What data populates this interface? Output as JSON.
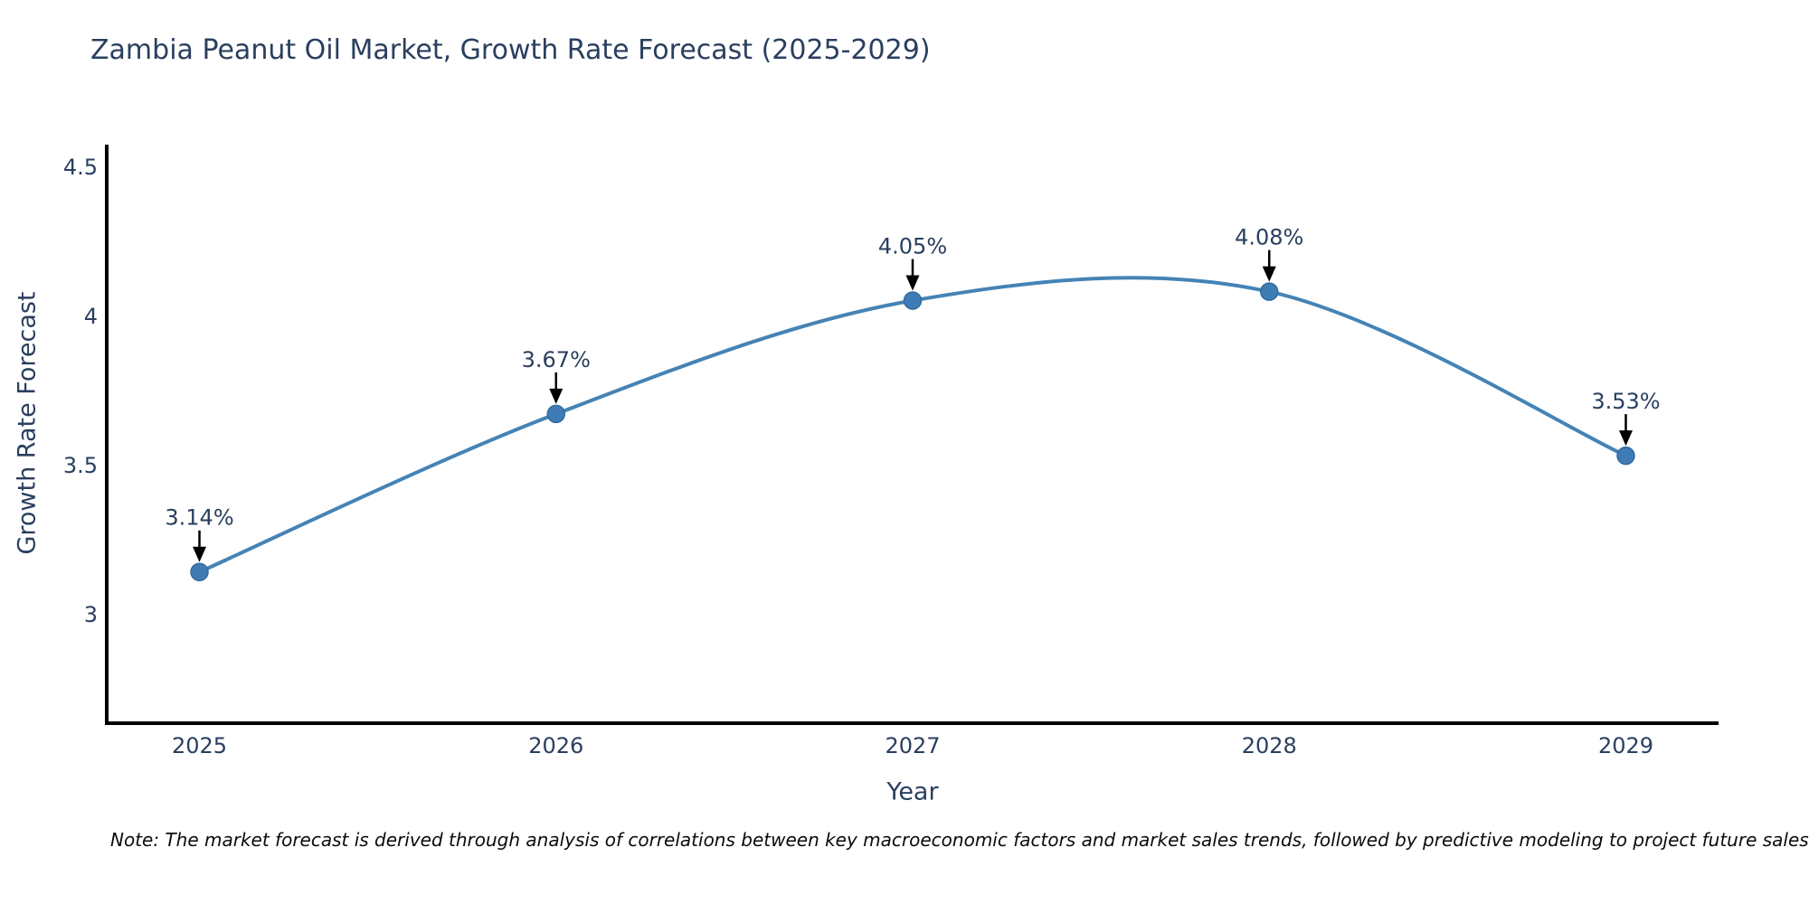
{
  "chart_data": {
    "type": "line",
    "line_shape": "spline",
    "title": "Zambia Peanut Oil Market, Growth Rate Forecast (2025-2029)",
    "xlabel": "Year",
    "ylabel": "Growth Rate Forecast",
    "categories": [
      2025,
      2026,
      2027,
      2028,
      2029
    ],
    "values": [
      3.14,
      3.67,
      4.05,
      4.08,
      3.53
    ],
    "point_labels": [
      "3.14%",
      "3.67%",
      "4.05%",
      "4.08%",
      "3.53%"
    ],
    "xtick_labels": [
      "2025",
      "2026",
      "2027",
      "2028",
      "2029"
    ],
    "yticks": [
      3,
      3.5,
      4,
      4.5
    ],
    "ytick_labels": [
      "3",
      "3.5",
      "4",
      "4.5"
    ],
    "xlim": [
      2024.74,
      2029.26
    ],
    "ylim": [
      2.633,
      4.573
    ],
    "grid": false,
    "legend": false,
    "colors": {
      "line": "#4583b5",
      "marker": "#3f7cb6",
      "marker_edge": "#336b9f",
      "text": "#2a3f5f",
      "axis": "#000000",
      "annotation_text": "#2a3f5f",
      "annotation_arrow": "#000000",
      "background": "#ffffff"
    },
    "note": "Note: The market forecast is derived through analysis of correlations between key macroeconomic factors and market sales trends, followed by predictive modeling to project future sales"
  }
}
